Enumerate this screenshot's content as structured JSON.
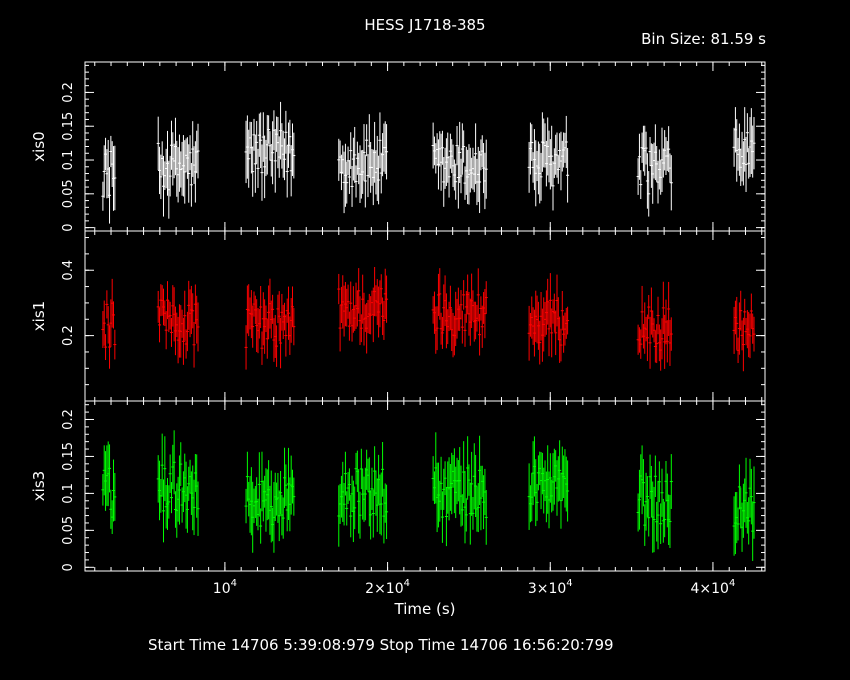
{
  "header": {
    "title": "HESS J1718-385",
    "bin_size": "Bin Size: 81.59 s"
  },
  "footer": {
    "text": "Start Time 14706  5:39:08:979    Stop Time 14706 16:56:20:799"
  },
  "chart_data": {
    "type": "scatter",
    "title": "HESS J1718-385",
    "xlabel": "Time (s)",
    "xlim": [
      1400,
      43200
    ],
    "x_ticks": [
      {
        "value": 10000,
        "label": "10^4"
      },
      {
        "value": 20000,
        "label": "2×10^4"
      },
      {
        "value": 30000,
        "label": "3×10^4"
      },
      {
        "value": 40000,
        "label": "4×10^4"
      }
    ],
    "x_minor_step": 1000,
    "grid": false,
    "segments": [
      [
        2500,
        3250
      ],
      [
        5900,
        8400
      ],
      [
        11300,
        14300
      ],
      [
        17000,
        20000
      ],
      [
        22800,
        26100
      ],
      [
        28700,
        31100
      ],
      [
        35400,
        37500
      ],
      [
        41300,
        42600
      ]
    ],
    "bin_size_s": 81.59,
    "panels": [
      {
        "name": "xis0",
        "ylabel": "xis0",
        "color": "#ffffff",
        "ylim": [
          -0.005,
          0.245
        ],
        "ticks": [
          0,
          0.05,
          0.1,
          0.15,
          0.2
        ],
        "tick_labels": [
          "0",
          "0.05",
          "0.1",
          "0.15",
          "0.2"
        ],
        "minor_step": 0.01,
        "segment_means": [
          0.08,
          0.09,
          0.11,
          0.095,
          0.09,
          0.095,
          0.085,
          0.11
        ],
        "scatter": 0.035,
        "err": 0.035
      },
      {
        "name": "xis1",
        "ylabel": "xis1",
        "color": "#ff0000",
        "ylim": [
          0,
          0.52
        ],
        "ticks": [
          0.2,
          0.4
        ],
        "tick_labels": [
          "0.2",
          "0.4"
        ],
        "minor_step": 0.05,
        "segment_means": [
          0.23,
          0.24,
          0.23,
          0.28,
          0.27,
          0.24,
          0.22,
          0.22
        ],
        "scatter": 0.07,
        "err": 0.06
      },
      {
        "name": "xis3",
        "ylabel": "xis3",
        "color": "#00ff00",
        "ylim": [
          -0.005,
          0.225
        ],
        "ticks": [
          0,
          0.05,
          0.1,
          0.15,
          0.2
        ],
        "tick_labels": [
          "0",
          "0.05",
          "0.1",
          "0.15",
          "0.2"
        ],
        "minor_step": 0.01,
        "segment_means": [
          0.1,
          0.11,
          0.09,
          0.1,
          0.1,
          0.11,
          0.09,
          0.08
        ],
        "scatter": 0.035,
        "err": 0.035
      }
    ]
  }
}
